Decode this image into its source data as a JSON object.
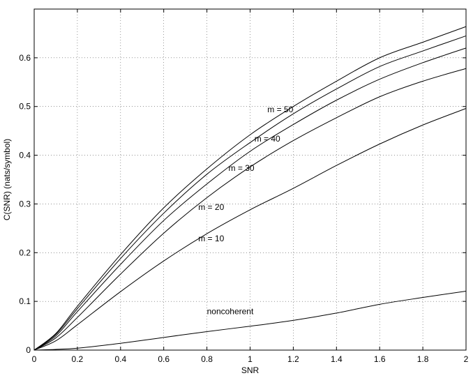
{
  "chart_data": {
    "type": "line",
    "title": "",
    "xlabel": "SNR",
    "ylabel": "C(SNR) (nats/symbol)",
    "xlim": [
      0,
      2
    ],
    "ylim": [
      0,
      0.7
    ],
    "grid": true,
    "x_ticks": [
      0,
      0.2,
      0.4,
      0.6,
      0.8,
      1,
      1.2,
      1.4,
      1.6,
      1.8,
      2
    ],
    "x_tick_labels": [
      "0",
      "0.2",
      "0.4",
      "0.6",
      "0.8",
      "1",
      "1.2",
      "1.4",
      "1.6",
      "1.8",
      "2"
    ],
    "y_ticks": [
      0,
      0.1,
      0.2,
      0.3,
      0.4,
      0.5,
      0.6
    ],
    "y_tick_labels": [
      "0",
      "0.1",
      "0.2",
      "0.3",
      "0.4",
      "0.5",
      "0.6"
    ],
    "series": [
      {
        "name": "m = 50",
        "x": [
          0,
          0.1,
          0.2,
          0.4,
          0.6,
          0.8,
          1.0,
          1.2,
          1.4,
          1.6,
          1.8,
          2.0
        ],
        "y": [
          0,
          0.034,
          0.09,
          0.196,
          0.292,
          0.372,
          0.442,
          0.5,
          0.552,
          0.6,
          0.632,
          0.664
        ]
      },
      {
        "name": "m = 40",
        "x": [
          0,
          0.1,
          0.2,
          0.4,
          0.6,
          0.8,
          1.0,
          1.2,
          1.4,
          1.6,
          1.8,
          2.0
        ],
        "y": [
          0,
          0.032,
          0.085,
          0.188,
          0.281,
          0.361,
          0.426,
          0.485,
          0.536,
          0.582,
          0.614,
          0.645
        ]
      },
      {
        "name": "m = 30",
        "x": [
          0,
          0.1,
          0.2,
          0.4,
          0.6,
          0.8,
          1.0,
          1.2,
          1.4,
          1.6,
          1.8,
          2.0
        ],
        "y": [
          0,
          0.029,
          0.079,
          0.176,
          0.266,
          0.341,
          0.408,
          0.463,
          0.513,
          0.556,
          0.59,
          0.62
        ]
      },
      {
        "name": "m = 20",
        "x": [
          0,
          0.1,
          0.2,
          0.4,
          0.6,
          0.8,
          1.0,
          1.2,
          1.4,
          1.6,
          1.8,
          2.0
        ],
        "y": [
          0,
          0.025,
          0.067,
          0.156,
          0.24,
          0.313,
          0.376,
          0.43,
          0.477,
          0.52,
          0.552,
          0.578
        ]
      },
      {
        "name": "m = 10",
        "x": [
          0,
          0.1,
          0.2,
          0.4,
          0.6,
          0.8,
          1.0,
          1.2,
          1.4,
          1.6,
          1.8,
          2.0
        ],
        "y": [
          0,
          0.019,
          0.052,
          0.12,
          0.183,
          0.239,
          0.288,
          0.332,
          0.379,
          0.423,
          0.462,
          0.496
        ]
      },
      {
        "name": "noncoherent",
        "x": [
          0,
          0.1,
          0.2,
          0.4,
          0.6,
          0.8,
          1.0,
          1.2,
          1.4,
          1.6,
          1.8,
          2.0
        ],
        "y": [
          0,
          0.0015,
          0.004,
          0.014,
          0.026,
          0.038,
          0.049,
          0.061,
          0.076,
          0.094,
          0.108,
          0.121
        ]
      }
    ],
    "annotations": [
      {
        "text": "m = 50",
        "x": 1.08,
        "y": 0.488
      },
      {
        "text": "m = 40",
        "x": 1.02,
        "y": 0.428
      },
      {
        "text": "m = 30",
        "x": 0.9,
        "y": 0.368
      },
      {
        "text": "m = 20",
        "x": 0.76,
        "y": 0.288
      },
      {
        "text": "m = 10",
        "x": 0.76,
        "y": 0.223
      },
      {
        "text": "noncoherent",
        "x": 0.8,
        "y": 0.074
      }
    ]
  }
}
